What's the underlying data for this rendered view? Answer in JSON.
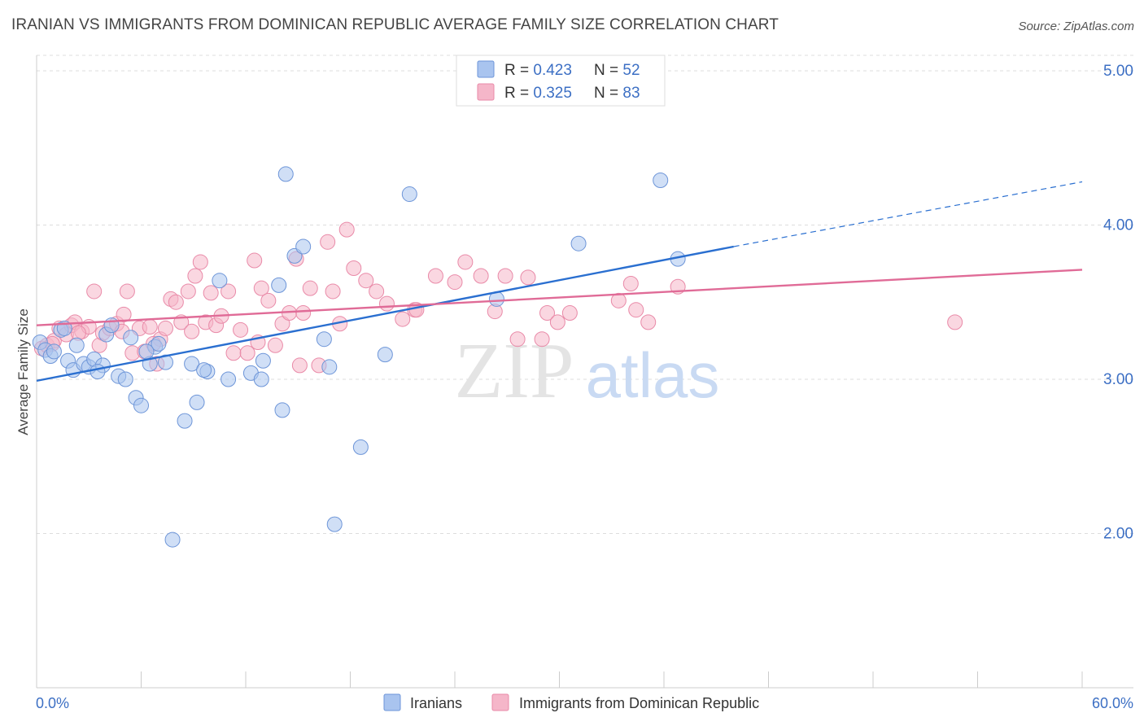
{
  "header": {
    "title": "IRANIAN VS IMMIGRANTS FROM DOMINICAN REPUBLIC AVERAGE FAMILY SIZE CORRELATION CHART",
    "source": "Source: ZipAtlas.com"
  },
  "watermark": {
    "zip": "ZIP",
    "atlas": "atlas"
  },
  "colors": {
    "blue_fill": "#a9c4ef",
    "blue_stroke": "#6d95d8",
    "blue_line": "#2a6fd0",
    "pink_fill": "#f5b6c9",
    "pink_stroke": "#e98aa8",
    "pink_line": "#e06b97",
    "axis_label": "#3c6fc4",
    "grid": "#dddddd"
  },
  "chart_data": {
    "type": "scatter",
    "ylabel": "Average Family Size",
    "xlim": [
      0,
      60
    ],
    "ylim": [
      1.0,
      5.1
    ],
    "x_ticks": [
      0,
      6,
      12,
      18,
      24,
      30,
      36,
      42,
      48,
      54,
      60
    ],
    "x_tick_labels": {
      "0": "0.0%",
      "60": "60.0%"
    },
    "y_ticks": [
      2.0,
      3.0,
      4.0,
      5.0
    ],
    "y_tick_labels": [
      "2.00",
      "3.00",
      "4.00",
      "5.00"
    ],
    "grid": "horizontal dashed",
    "legend_stats": [
      {
        "r_label": "R = ",
        "r_value": "0.423",
        "n_label": "N = ",
        "n_value": "52"
      },
      {
        "r_label": "R = ",
        "r_value": "0.325",
        "n_label": "N = ",
        "n_value": "83"
      }
    ],
    "series": [
      {
        "name": "Iranians",
        "trend": {
          "x1": 0,
          "y1": 2.99,
          "x2": 40,
          "y2": 3.86,
          "dash_to_x": 60,
          "dash_to_y": 4.28
        },
        "points": [
          [
            0.2,
            3.24
          ],
          [
            0.5,
            3.19
          ],
          [
            0.8,
            3.15
          ],
          [
            1.0,
            3.18
          ],
          [
            1.4,
            3.32
          ],
          [
            1.8,
            3.12
          ],
          [
            2.1,
            3.06
          ],
          [
            2.3,
            3.22
          ],
          [
            2.7,
            3.1
          ],
          [
            3.0,
            3.08
          ],
          [
            3.3,
            3.13
          ],
          [
            3.8,
            3.09
          ],
          [
            4.0,
            3.29
          ],
          [
            4.3,
            3.35
          ],
          [
            4.7,
            3.02
          ],
          [
            5.1,
            3.0
          ],
          [
            5.4,
            3.27
          ],
          [
            5.7,
            2.88
          ],
          [
            6.0,
            2.83
          ],
          [
            6.5,
            3.1
          ],
          [
            6.8,
            3.21
          ],
          [
            7.0,
            3.23
          ],
          [
            7.4,
            3.11
          ],
          [
            7.8,
            1.96
          ],
          [
            8.5,
            2.73
          ],
          [
            8.9,
            3.1
          ],
          [
            9.2,
            2.85
          ],
          [
            9.8,
            3.05
          ],
          [
            10.5,
            3.64
          ],
          [
            11.0,
            3.0
          ],
          [
            12.3,
            3.04
          ],
          [
            13.0,
            3.12
          ],
          [
            13.9,
            3.61
          ],
          [
            14.1,
            2.8
          ],
          [
            14.3,
            4.33
          ],
          [
            14.8,
            3.8
          ],
          [
            15.3,
            3.86
          ],
          [
            16.5,
            3.26
          ],
          [
            16.8,
            3.08
          ],
          [
            17.1,
            2.06
          ],
          [
            18.6,
            2.56
          ],
          [
            20.0,
            3.16
          ],
          [
            21.4,
            4.2
          ],
          [
            26.4,
            3.52
          ],
          [
            31.1,
            3.88
          ],
          [
            35.8,
            4.29
          ],
          [
            36.8,
            3.78
          ],
          [
            3.5,
            3.05
          ],
          [
            1.6,
            3.33
          ],
          [
            6.3,
            3.18
          ],
          [
            9.6,
            3.06
          ],
          [
            12.9,
            3.0
          ]
        ]
      },
      {
        "name": "Immigrants from Dominican Republic",
        "trend": {
          "x1": 0,
          "y1": 3.35,
          "x2": 60,
          "y2": 3.71
        },
        "points": [
          [
            0.3,
            3.2
          ],
          [
            0.6,
            3.22
          ],
          [
            1.0,
            3.25
          ],
          [
            1.3,
            3.33
          ],
          [
            1.7,
            3.29
          ],
          [
            2.0,
            3.35
          ],
          [
            2.2,
            3.37
          ],
          [
            2.6,
            3.31
          ],
          [
            3.0,
            3.34
          ],
          [
            3.3,
            3.57
          ],
          [
            3.6,
            3.22
          ],
          [
            3.8,
            3.3
          ],
          [
            4.2,
            3.33
          ],
          [
            4.6,
            3.36
          ],
          [
            5.0,
            3.42
          ],
          [
            5.2,
            3.57
          ],
          [
            5.5,
            3.17
          ],
          [
            5.9,
            3.33
          ],
          [
            6.2,
            3.18
          ],
          [
            6.5,
            3.34
          ],
          [
            6.9,
            3.1
          ],
          [
            7.1,
            3.26
          ],
          [
            7.4,
            3.33
          ],
          [
            7.7,
            3.52
          ],
          [
            8.0,
            3.5
          ],
          [
            8.3,
            3.37
          ],
          [
            8.7,
            3.57
          ],
          [
            9.1,
            3.67
          ],
          [
            9.4,
            3.76
          ],
          [
            9.7,
            3.37
          ],
          [
            10.0,
            3.56
          ],
          [
            10.3,
            3.35
          ],
          [
            10.6,
            3.41
          ],
          [
            11.0,
            3.57
          ],
          [
            11.3,
            3.17
          ],
          [
            11.7,
            3.32
          ],
          [
            12.1,
            3.17
          ],
          [
            12.5,
            3.77
          ],
          [
            12.9,
            3.59
          ],
          [
            13.3,
            3.51
          ],
          [
            13.7,
            3.22
          ],
          [
            14.1,
            3.36
          ],
          [
            14.5,
            3.43
          ],
          [
            14.9,
            3.78
          ],
          [
            15.3,
            3.43
          ],
          [
            15.7,
            3.59
          ],
          [
            16.2,
            3.09
          ],
          [
            16.7,
            3.89
          ],
          [
            17.0,
            3.57
          ],
          [
            17.4,
            3.36
          ],
          [
            17.8,
            3.97
          ],
          [
            18.2,
            3.72
          ],
          [
            18.9,
            3.64
          ],
          [
            19.5,
            3.57
          ],
          [
            20.1,
            3.49
          ],
          [
            21.0,
            3.39
          ],
          [
            21.7,
            3.45
          ],
          [
            22.9,
            3.67
          ],
          [
            24.0,
            3.63
          ],
          [
            24.6,
            3.76
          ],
          [
            25.5,
            3.67
          ],
          [
            26.3,
            3.44
          ],
          [
            26.9,
            3.67
          ],
          [
            27.6,
            3.26
          ],
          [
            28.2,
            3.66
          ],
          [
            29.0,
            3.26
          ],
          [
            29.3,
            3.43
          ],
          [
            29.9,
            3.37
          ],
          [
            30.6,
            3.43
          ],
          [
            33.4,
            3.51
          ],
          [
            34.1,
            3.62
          ],
          [
            34.4,
            3.45
          ],
          [
            35.1,
            3.37
          ],
          [
            36.8,
            3.6
          ],
          [
            0.9,
            3.23
          ],
          [
            2.4,
            3.3
          ],
          [
            4.9,
            3.31
          ],
          [
            6.7,
            3.23
          ],
          [
            8.9,
            3.31
          ],
          [
            12.7,
            3.24
          ],
          [
            15.1,
            3.09
          ],
          [
            52.7,
            3.37
          ],
          [
            21.8,
            3.45
          ]
        ]
      }
    ]
  }
}
